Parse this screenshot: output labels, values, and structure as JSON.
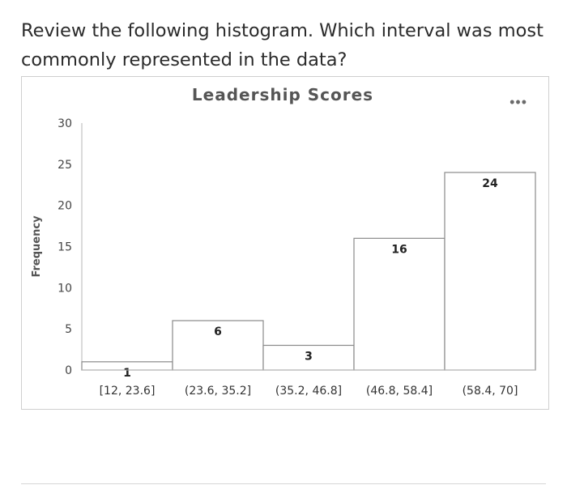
{
  "question": {
    "text": "Review the following histogram. Which interval was most commonly represented in the data?"
  },
  "chart_data": {
    "type": "bar",
    "title": "Leadership Scores",
    "xlabel": "",
    "ylabel": "Frequency",
    "categories": [
      "[12, 23.6]",
      "(23.6, 35.2]",
      "(35.2, 46.8]",
      "(46.8, 58.4]",
      "(58.4, 70]"
    ],
    "values": [
      1,
      6,
      3,
      16,
      24
    ],
    "ylim": [
      0,
      30
    ],
    "yticks": [
      0,
      5,
      10,
      15,
      20,
      25,
      30
    ],
    "data_labels": [
      "1",
      "6",
      "3",
      "16",
      "24"
    ],
    "grid": false,
    "bar_fill": "#ffffff",
    "bar_stroke": "#8a8a8a"
  },
  "icons": {
    "more": "more-options-icon"
  }
}
